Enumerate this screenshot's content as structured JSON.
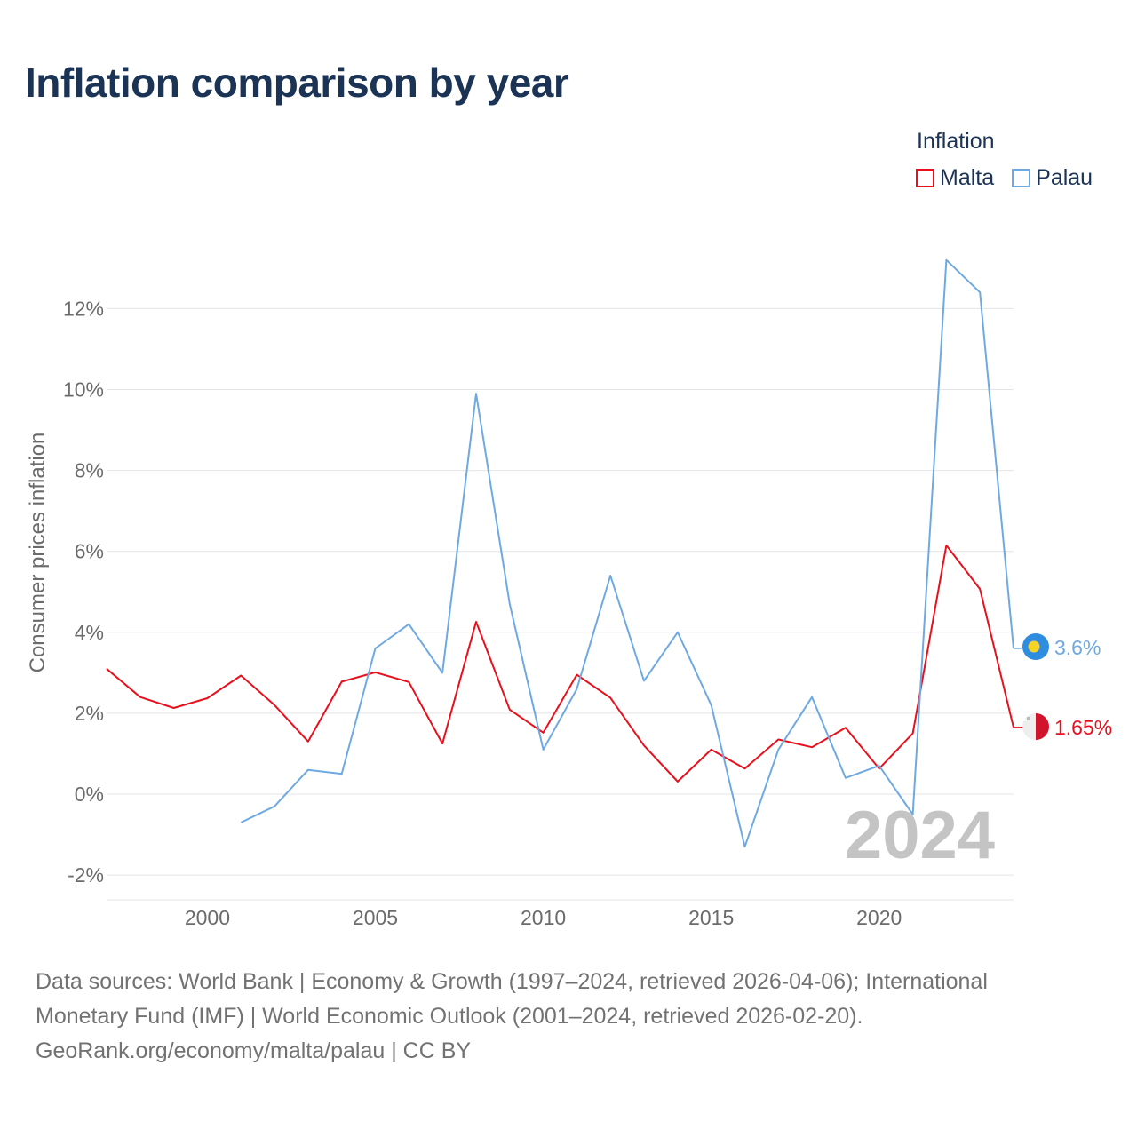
{
  "title": "Inflation comparison by year",
  "legend": {
    "title": "Inflation",
    "items": [
      {
        "label": "Malta",
        "color": "#e8101c"
      },
      {
        "label": "Palau",
        "color": "#6fa9e1"
      }
    ]
  },
  "chart_data": {
    "type": "line",
    "title": "Inflation comparison by year",
    "xlabel": "",
    "ylabel": "Consumer prices inflation",
    "xlim": [
      1997,
      2024
    ],
    "ylim": [
      -2.5,
      13.5
    ],
    "x_ticks": [
      2000,
      2005,
      2010,
      2015,
      2020
    ],
    "y_ticks": [
      -2,
      0,
      2,
      4,
      6,
      8,
      10,
      12
    ],
    "y_tick_labels": [
      "-2%",
      "0%",
      "2%",
      "4%",
      "6%",
      "8%",
      "10%",
      "12%"
    ],
    "grid": true,
    "watermark_year": "2024",
    "series": [
      {
        "name": "Malta",
        "color": "#e8101c",
        "x": [
          1997,
          1998,
          1999,
          2000,
          2001,
          2002,
          2003,
          2004,
          2005,
          2006,
          2007,
          2008,
          2009,
          2010,
          2011,
          2012,
          2013,
          2014,
          2015,
          2016,
          2017,
          2018,
          2019,
          2020,
          2021,
          2022,
          2023,
          2024
        ],
        "values": [
          3.1,
          2.4,
          2.13,
          2.37,
          2.93,
          2.2,
          1.3,
          2.78,
          3.01,
          2.77,
          1.25,
          4.26,
          2.09,
          1.52,
          2.95,
          2.38,
          1.2,
          0.31,
          1.1,
          0.63,
          1.35,
          1.16,
          1.64,
          0.63,
          1.5,
          6.15,
          5.07,
          1.65
        ],
        "end_label": "1.65%"
      },
      {
        "name": "Palau",
        "color": "#6fa9e1",
        "x": [
          2001,
          2002,
          2003,
          2004,
          2005,
          2006,
          2007,
          2008,
          2009,
          2010,
          2011,
          2012,
          2013,
          2014,
          2015,
          2016,
          2017,
          2018,
          2019,
          2020,
          2021,
          2022,
          2023,
          2024
        ],
        "values": [
          -0.7,
          -0.3,
          0.6,
          0.5,
          3.6,
          4.2,
          3.0,
          9.9,
          4.7,
          1.1,
          2.6,
          5.4,
          2.8,
          4.0,
          2.2,
          -1.3,
          1.1,
          2.4,
          0.4,
          0.7,
          -0.5,
          13.2,
          12.4,
          3.6
        ],
        "end_label": "3.6%"
      }
    ]
  },
  "sources": {
    "line1": "Data sources: World Bank | Economy & Growth (1997–2024, retrieved 2026-04-06); International",
    "line2": "Monetary Fund (IMF) | World Economic Outlook (2001–2024, retrieved 2026-02-20).",
    "line3": "GeoRank.org/economy/malta/palau | CC BY"
  }
}
